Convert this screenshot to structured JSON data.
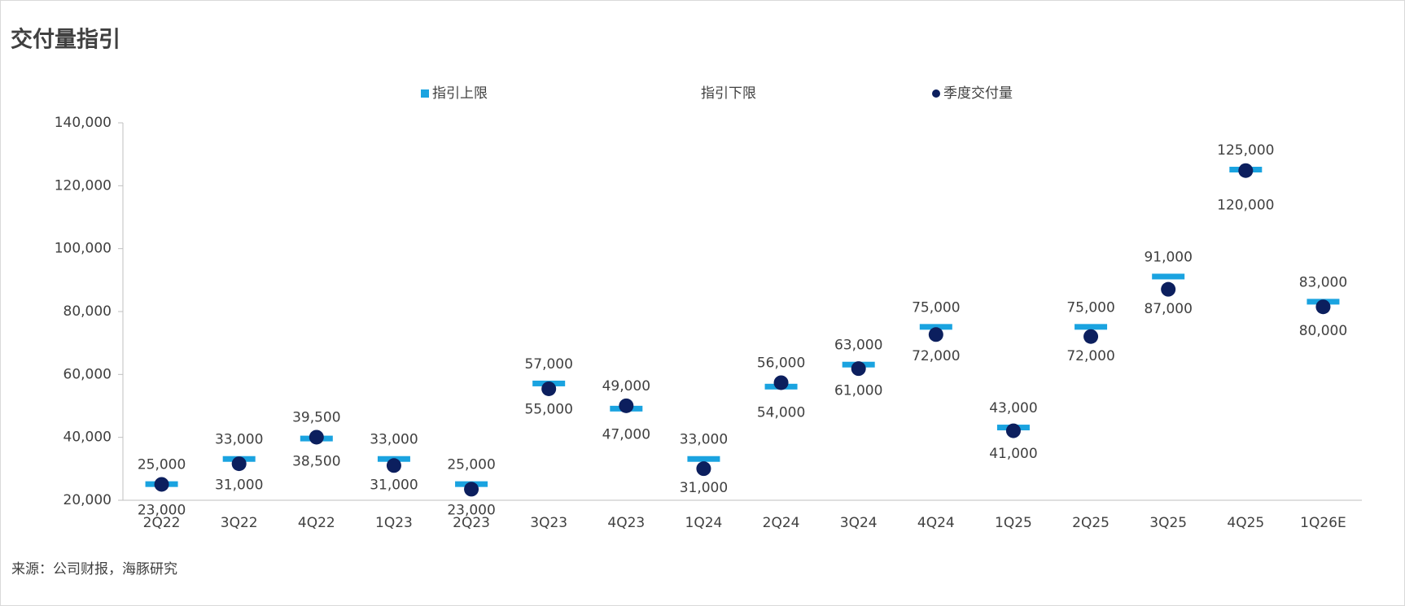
{
  "chart_data": {
    "type": "dot-range",
    "title": "交付量指引",
    "source": "来源：公司财报，海豚研究",
    "categories": [
      "2Q22",
      "3Q22",
      "4Q22",
      "1Q23",
      "2Q23",
      "3Q23",
      "4Q23",
      "1Q24",
      "2Q24",
      "3Q24",
      "4Q24",
      "1Q25",
      "2Q25",
      "3Q25",
      "4Q25",
      "1Q26E"
    ],
    "ylim": [
      20000,
      140000
    ],
    "yticks": [
      {
        "value": 20000,
        "label": "20,000"
      },
      {
        "value": 40000,
        "label": "40,000"
      },
      {
        "value": 60000,
        "label": "60,000"
      },
      {
        "value": 80000,
        "label": "80,000"
      },
      {
        "value": 100000,
        "label": "100,000"
      },
      {
        "value": 120000,
        "label": "120,000"
      },
      {
        "value": 140000,
        "label": "140,000"
      }
    ],
    "grid": false,
    "series": [
      {
        "name": "指引上限",
        "color": "#1aa3e0",
        "values": [
          25000,
          33000,
          39500,
          33000,
          25000,
          57000,
          49000,
          33000,
          56000,
          63000,
          75000,
          43000,
          75000,
          91000,
          125000,
          83000
        ],
        "value_labels": [
          "25,000",
          "33,000",
          "39,500",
          "33,000",
          "25,000",
          "57,000",
          "49,000",
          "33,000",
          "56,000",
          "63,000",
          "75,000",
          "43,000",
          "75,000",
          "91,000",
          "125,000",
          "83,000"
        ]
      },
      {
        "name": "指引下限",
        "values": [
          23000,
          31000,
          38500,
          31000,
          23000,
          55000,
          47000,
          31000,
          54000,
          61000,
          72000,
          41000,
          72000,
          87000,
          120000,
          80000
        ],
        "value_labels": [
          "23,000",
          "31,000",
          "38,500",
          "31,000",
          "23,000",
          "55,000",
          "47,000",
          "31,000",
          "54,000",
          "61,000",
          "72,000",
          "41,000",
          "72,000",
          "87,000",
          "120,000",
          "80,000"
        ]
      },
      {
        "name": "季度交付量",
        "color": "#0c1f5e",
        "values": [
          25059,
          31607,
          40052,
          31041,
          23520,
          55432,
          50045,
          30053,
          57373,
          61855,
          72689,
          42094,
          72056,
          87071,
          124807,
          81500
        ]
      }
    ]
  }
}
